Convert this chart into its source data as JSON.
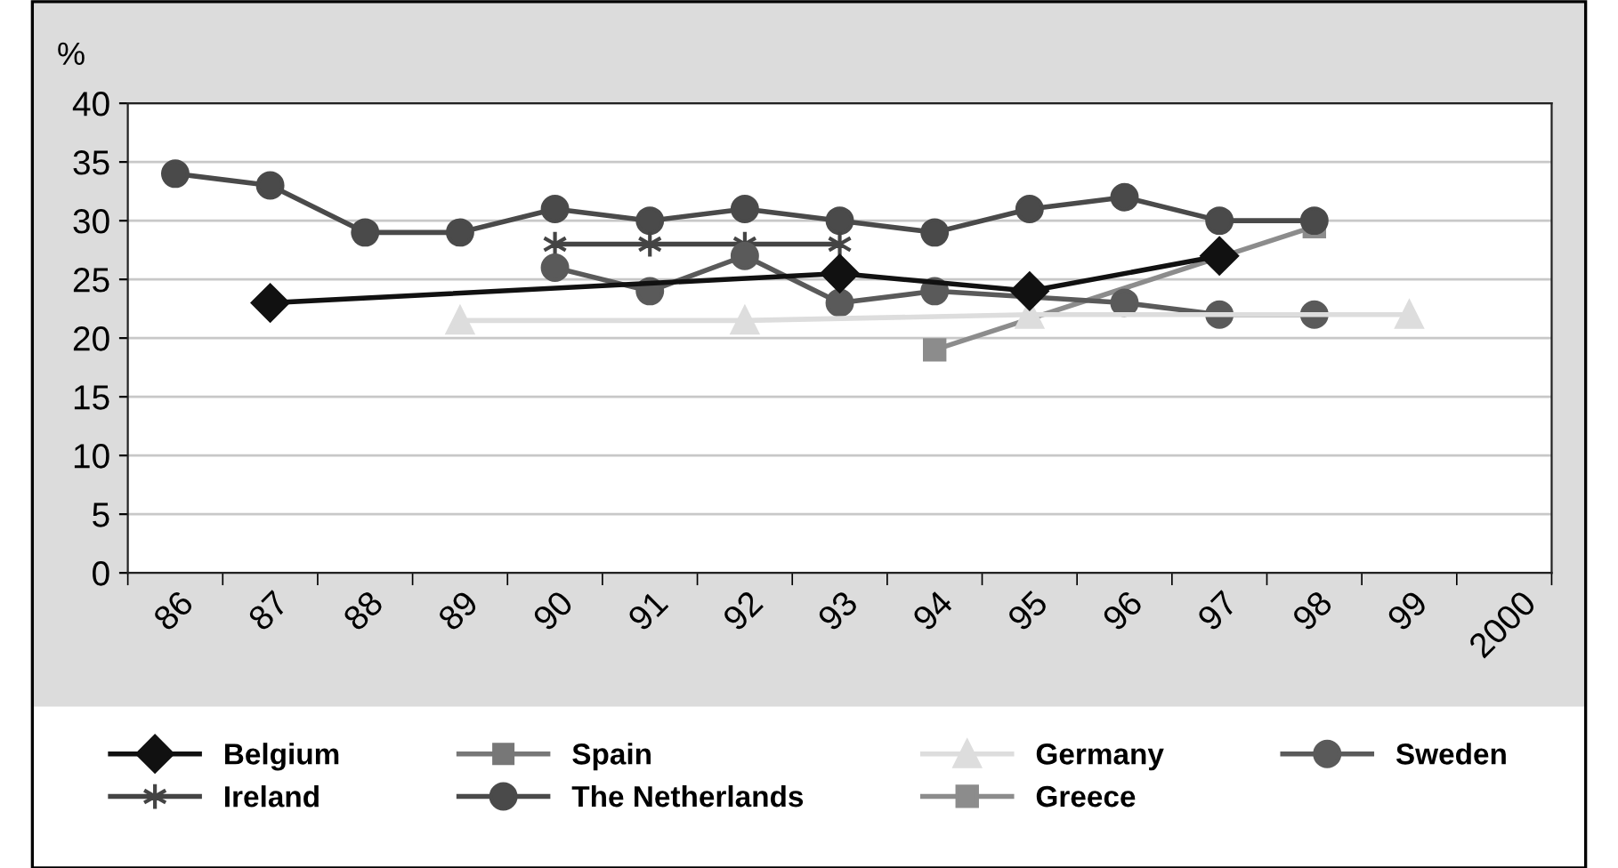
{
  "chart_data": {
    "type": "line",
    "ylabel": "%",
    "categories": [
      "86",
      "87",
      "88",
      "89",
      "90",
      "91",
      "92",
      "93",
      "94",
      "95",
      "96",
      "97",
      "98",
      "99",
      "2000"
    ],
    "ylim": [
      0,
      40
    ],
    "yticks": [
      0,
      5,
      10,
      15,
      20,
      25,
      30,
      35,
      40
    ],
    "grid": "y",
    "legend": "bottom",
    "series": [
      {
        "name": "Belgium",
        "color": "#111111",
        "marker": "diamond",
        "values": [
          null,
          23,
          null,
          null,
          null,
          null,
          null,
          25.5,
          null,
          24,
          null,
          27,
          null,
          null,
          null
        ]
      },
      {
        "name": "Spain",
        "color": "#777777",
        "marker": "square",
        "values": [
          null,
          null,
          null,
          null,
          null,
          null,
          null,
          null,
          null,
          null,
          null,
          null,
          null,
          null,
          null
        ]
      },
      {
        "name": "Germany",
        "color": "#dddddd",
        "marker": "triangle",
        "values": [
          null,
          null,
          null,
          21.5,
          null,
          null,
          21.5,
          null,
          null,
          22,
          null,
          null,
          null,
          22,
          null
        ]
      },
      {
        "name": "Sweden",
        "color": "#5a5a5a",
        "marker": "circle",
        "values": [
          null,
          null,
          null,
          null,
          26,
          24,
          27,
          23,
          24,
          null,
          23,
          22,
          22,
          null,
          null
        ]
      },
      {
        "name": "Ireland",
        "color": "#444444",
        "marker": "cross",
        "values": [
          null,
          null,
          null,
          null,
          28,
          28,
          28,
          28,
          null,
          null,
          null,
          null,
          null,
          null,
          null
        ]
      },
      {
        "name": "The Netherlands",
        "color": "#4a4a4a",
        "marker": "circle",
        "values": [
          34,
          33,
          29,
          29,
          31,
          30,
          31,
          30,
          29,
          31,
          32,
          30,
          30,
          null,
          null
        ]
      },
      {
        "name": "Greece",
        "color": "#8c8c8c",
        "marker": "square",
        "values": [
          null,
          null,
          null,
          null,
          null,
          null,
          null,
          null,
          19,
          null,
          null,
          null,
          29.5,
          null,
          null
        ]
      }
    ]
  }
}
